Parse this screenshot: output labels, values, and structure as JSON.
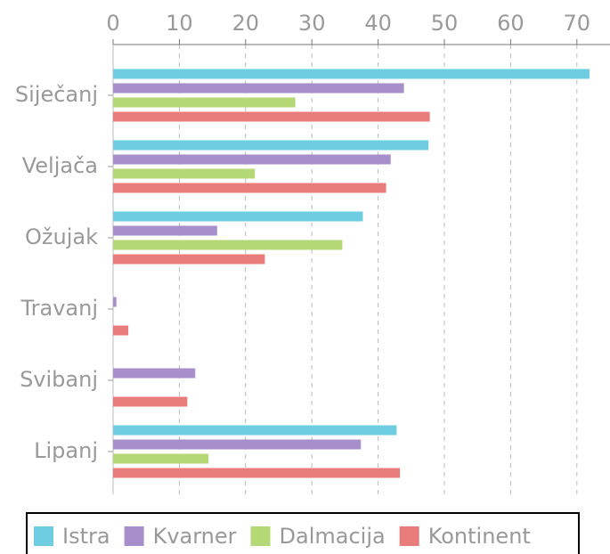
{
  "chart_data": {
    "type": "hbar",
    "categories": [
      "Siječanj",
      "Veljača",
      "Ožujak",
      "Travanj",
      "Svibanj",
      "Lipanj"
    ],
    "series": [
      {
        "name": "Istra",
        "color": "#6ecde0",
        "values": [
          71.9,
          47.6,
          37.7,
          0,
          0,
          42.8
        ]
      },
      {
        "name": "Kvarner",
        "color": "#a88fcb",
        "values": [
          43.9,
          41.9,
          15.7,
          0.5,
          12.4,
          37.4
        ]
      },
      {
        "name": "Dalmacija",
        "color": "#b5d876",
        "values": [
          27.5,
          21.4,
          34.6,
          0,
          0,
          14.4
        ]
      },
      {
        "name": "Kontinent",
        "color": "#e77c7b",
        "values": [
          47.8,
          41.2,
          22.9,
          2.3,
          11.2,
          43.3
        ]
      }
    ],
    "xlim": [
      0,
      75
    ],
    "xticks": [
      0,
      10,
      20,
      30,
      40,
      50,
      60,
      70
    ],
    "grid": true,
    "legend": "bottom"
  }
}
